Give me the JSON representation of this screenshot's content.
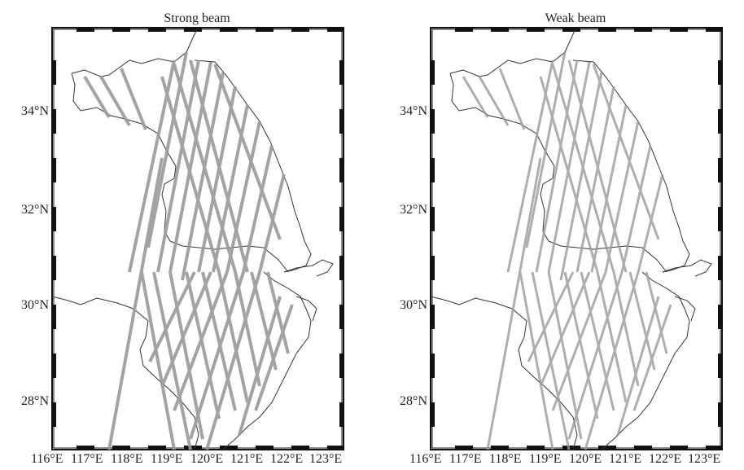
{
  "panels": [
    {
      "title": "Strong beam",
      "lat_labels": [
        "34°N",
        "32°N",
        "30°N",
        "28°N"
      ],
      "lon_labels": [
        "116°E",
        "117°E",
        "118°E",
        "119°E",
        "120°E",
        "121°E",
        "122°E",
        "123°E"
      ]
    },
    {
      "title": "Weak beam",
      "lat_labels": [
        "34°N",
        "32°N",
        "30°N",
        "28°N"
      ],
      "lon_labels": [
        "116°E",
        "117°E",
        "118°E",
        "119°E",
        "120°E",
        "121°E",
        "122°E",
        "123°E"
      ]
    }
  ],
  "colors": {
    "frame": "#111111",
    "track": "#9a9a9a",
    "boundary": "#333333"
  }
}
